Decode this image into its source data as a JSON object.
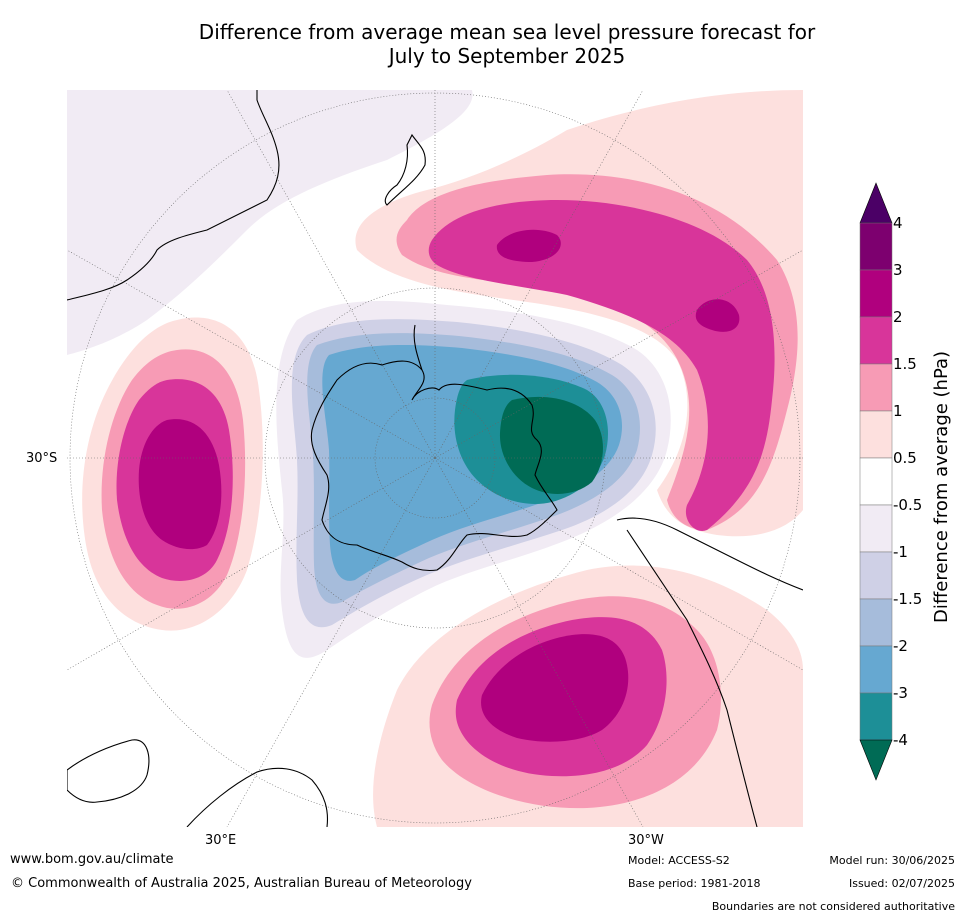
{
  "title_line1": "Difference from average mean sea level pressure forecast for",
  "title_line2": "July to September 2025",
  "map": {
    "lat_label_left": "30°S",
    "lon_label_left": "30°E",
    "lon_label_right": "30°W"
  },
  "colorbar": {
    "label": "Difference from average (hPa)",
    "ticks": [
      "4",
      "3",
      "2",
      "1.5",
      "1",
      "0.5",
      "-0.5",
      "-1",
      "-1.5",
      "-2",
      "-3",
      "-4"
    ],
    "colors": {
      "gt4": "#4b0066",
      "3to4": "#7d006f",
      "2to3": "#b0007e",
      "1.5to2": "#d8359a",
      "1to1.5": "#f79bb5",
      "0.5to1": "#fde0de",
      "neutral": "#ffffff",
      "-1to-0.5": "#f1ebf4",
      "-1.5to-1": "#cfd0e6",
      "-2to-1.5": "#a6bcdb",
      "-3to-2": "#66a8d1",
      "-4to-3": "#1d8f97",
      "lt-4": "#006b55"
    }
  },
  "footer": {
    "website": "www.bom.gov.au/climate",
    "copyright": "© Commonwealth of Australia 2025, Australian Bureau of Meteorology",
    "model": "Model: ACCESS-S2",
    "base_period": "Base period: 1981-2018",
    "model_run": "Model run: 30/06/2025",
    "issued": "Issued: 02/07/2025",
    "disclaimer": "Boundaries are not considered authoritative"
  }
}
